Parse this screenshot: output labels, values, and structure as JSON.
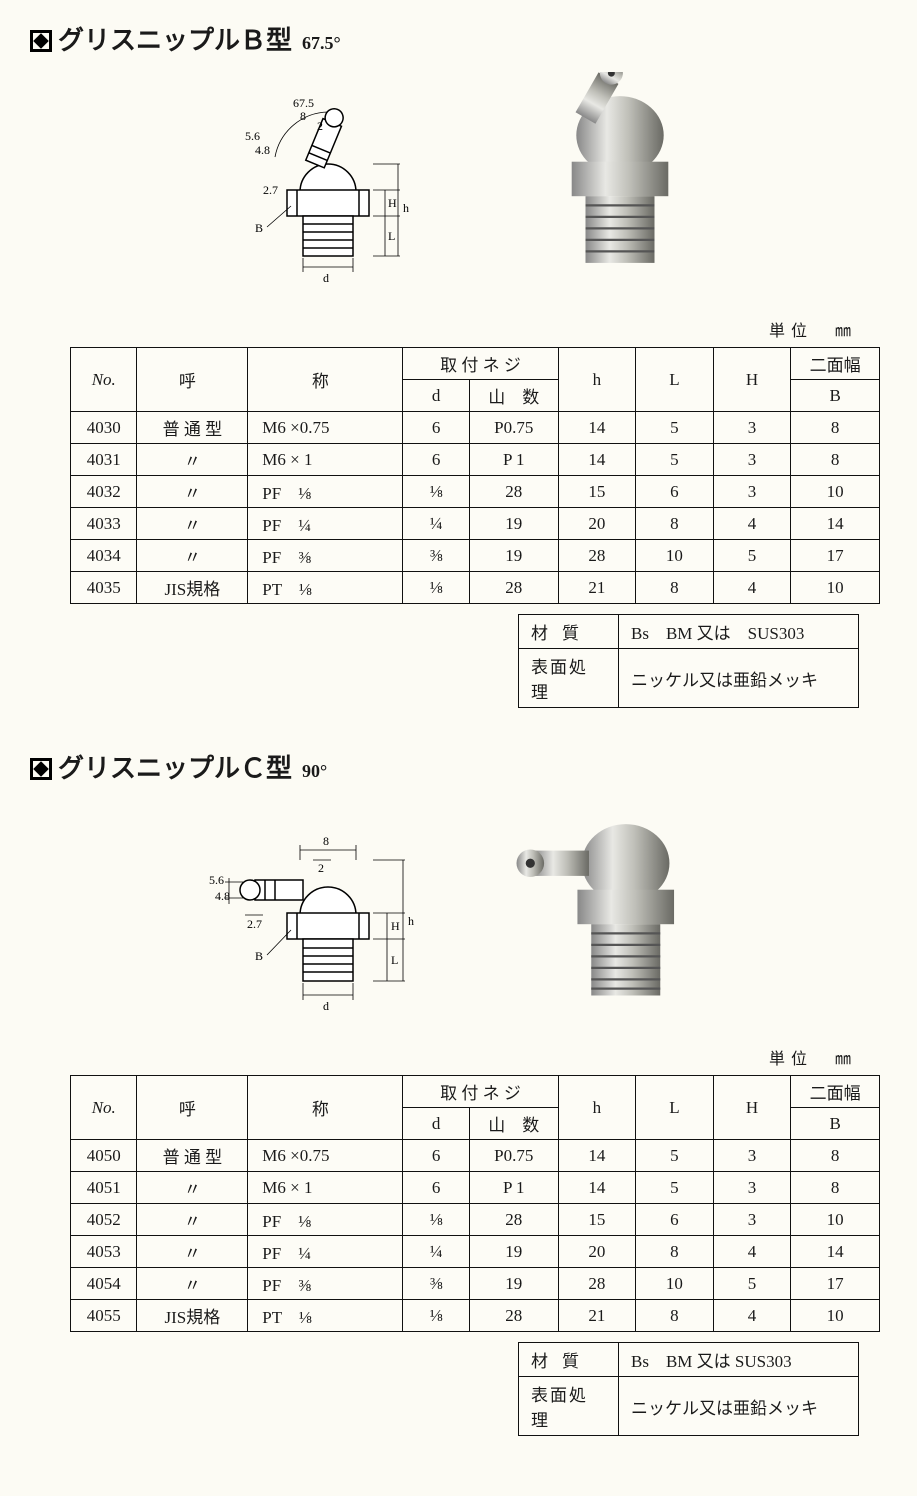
{
  "sections": [
    {
      "title_main": "グリスニップルＢ型",
      "title_angle": "67.5°",
      "drawing_labels": {
        "angle": "67.5",
        "top_w": "8",
        "tip_gap": "2",
        "tip_d1": "5.6",
        "tip_d2": "4.8",
        "base_gap": "2.7",
        "H": "H",
        "L": "L",
        "h": "h",
        "d": "d",
        "B": "B"
      },
      "unit": "単位　㎜",
      "columns": {
        "no": "No.",
        "type": "呼",
        "name": "称",
        "screw_group": "取 付 ネ ジ",
        "d": "d",
        "threads": "山　数",
        "h": "h",
        "L": "L",
        "H": "H",
        "B_group": "二面幅",
        "B": "B"
      },
      "rows": [
        {
          "no": "4030",
          "type": "普 通 型",
          "name": "M6 ×0.75",
          "d": "6",
          "threads": "P0.75",
          "h": "14",
          "L": "5",
          "H": "3",
          "B": "8"
        },
        {
          "no": "4031",
          "type": "〃",
          "name": "M6 × 1",
          "d": "6",
          "threads": "P 1",
          "h": "14",
          "L": "5",
          "H": "3",
          "B": "8"
        },
        {
          "no": "4032",
          "type": "〃",
          "name": "PF　⅛",
          "d": "⅛",
          "threads": "28",
          "h": "15",
          "L": "6",
          "H": "3",
          "B": "10"
        },
        {
          "no": "4033",
          "type": "〃",
          "name": "PF　¼",
          "d": "¼",
          "threads": "19",
          "h": "20",
          "L": "8",
          "H": "4",
          "B": "14"
        },
        {
          "no": "4034",
          "type": "〃",
          "name": "PF　⅜",
          "d": "⅜",
          "threads": "19",
          "h": "28",
          "L": "10",
          "H": "5",
          "B": "17"
        },
        {
          "no": "4035",
          "type": "JIS規格",
          "name": "PT　⅛",
          "d": "⅛",
          "threads": "28",
          "h": "21",
          "L": "8",
          "H": "4",
          "B": "10"
        }
      ],
      "material": {
        "mat_label": "材質",
        "mat_value": "Bs　BM 又は　SUS303",
        "surf_label": "表面処理",
        "surf_value": "ニッケル又は亜鉛メッキ"
      }
    },
    {
      "title_main": "グリスニップルＣ型",
      "title_angle": "90°",
      "drawing_labels": {
        "top_w": "8",
        "tip_gap": "2",
        "tip_d1": "5.6",
        "tip_d2": "4.8",
        "base_gap": "2.7",
        "H": "H",
        "L": "L",
        "h": "h",
        "d": "d",
        "B": "B"
      },
      "unit": "単位　㎜",
      "columns": {
        "no": "No.",
        "type": "呼",
        "name": "称",
        "screw_group": "取 付 ネ ジ",
        "d": "d",
        "threads": "山　数",
        "h": "h",
        "L": "L",
        "H": "H",
        "B_group": "二面幅",
        "B": "B"
      },
      "rows": [
        {
          "no": "4050",
          "type": "普 通 型",
          "name": "M6 ×0.75",
          "d": "6",
          "threads": "P0.75",
          "h": "14",
          "L": "5",
          "H": "3",
          "B": "8"
        },
        {
          "no": "4051",
          "type": "〃",
          "name": "M6 × 1",
          "d": "6",
          "threads": "P 1",
          "h": "14",
          "L": "5",
          "H": "3",
          "B": "8"
        },
        {
          "no": "4052",
          "type": "〃",
          "name": "PF　⅛",
          "d": "⅛",
          "threads": "28",
          "h": "15",
          "L": "6",
          "H": "3",
          "B": "10"
        },
        {
          "no": "4053",
          "type": "〃",
          "name": "PF　¼",
          "d": "¼",
          "threads": "19",
          "h": "20",
          "L": "8",
          "H": "4",
          "B": "14"
        },
        {
          "no": "4054",
          "type": "〃",
          "name": "PF　⅜",
          "d": "⅜",
          "threads": "19",
          "h": "28",
          "L": "10",
          "H": "5",
          "B": "17"
        },
        {
          "no": "4055",
          "type": "JIS規格",
          "name": "PT　⅛",
          "d": "⅛",
          "threads": "28",
          "h": "21",
          "L": "8",
          "H": "4",
          "B": "10"
        }
      ],
      "material": {
        "mat_label": "材質",
        "mat_value": "Bs　BM 又は SUS303",
        "surf_label": "表面処理",
        "surf_value": "ニッケル又は亜鉛メッキ"
      }
    }
  ]
}
